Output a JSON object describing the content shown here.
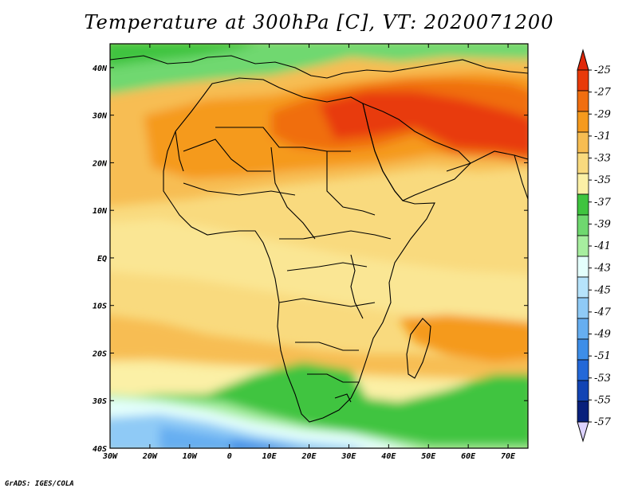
{
  "title": "Temperature at 300hPa [C], VT: 2020071200",
  "footer": "GrADS: IGES/COLA",
  "map": {
    "lon_range": [
      -30,
      75
    ],
    "lat_range": [
      -40,
      45
    ],
    "lon_ticks": [
      {
        "value": -30,
        "label": "30W"
      },
      {
        "value": -20,
        "label": "20W"
      },
      {
        "value": -10,
        "label": "10W"
      },
      {
        "value": 0,
        "label": "0"
      },
      {
        "value": 10,
        "label": "10E"
      },
      {
        "value": 20,
        "label": "20E"
      },
      {
        "value": 30,
        "label": "30E"
      },
      {
        "value": 40,
        "label": "40E"
      },
      {
        "value": 50,
        "label": "50E"
      },
      {
        "value": 60,
        "label": "60E"
      },
      {
        "value": 70,
        "label": "70E"
      }
    ],
    "lat_ticks": [
      {
        "value": 40,
        "label": "40N"
      },
      {
        "value": 30,
        "label": "30N"
      },
      {
        "value": 20,
        "label": "20N"
      },
      {
        "value": 10,
        "label": "10N"
      },
      {
        "value": 0,
        "label": "EQ"
      },
      {
        "value": -10,
        "label": "10S"
      },
      {
        "value": -20,
        "label": "20S"
      },
      {
        "value": -30,
        "label": "30S"
      },
      {
        "value": -40,
        "label": "40S"
      }
    ]
  },
  "colorbar": {
    "labels": [
      "-25",
      "-27",
      "-29",
      "-31",
      "-33",
      "-35",
      "-37",
      "-39",
      "-41",
      "-43",
      "-45",
      "-47",
      "-49",
      "-51",
      "-53",
      "-55",
      "-57"
    ],
    "colors": [
      "#e83a0a",
      "#f06e10",
      "#f59a1e",
      "#f7bd52",
      "#f9da7e",
      "#fbf0a6",
      "#3fc43f",
      "#6fd86f",
      "#a7ee9f",
      "#e4fffc",
      "#b6e3fb",
      "#8fcaf6",
      "#66aef1",
      "#3d8ee8",
      "#2368d8",
      "#1244b4",
      "#08207c"
    ],
    "top_arrow_color": "#e0280a",
    "bottom_arrow_color": "#dcd2ff"
  }
}
